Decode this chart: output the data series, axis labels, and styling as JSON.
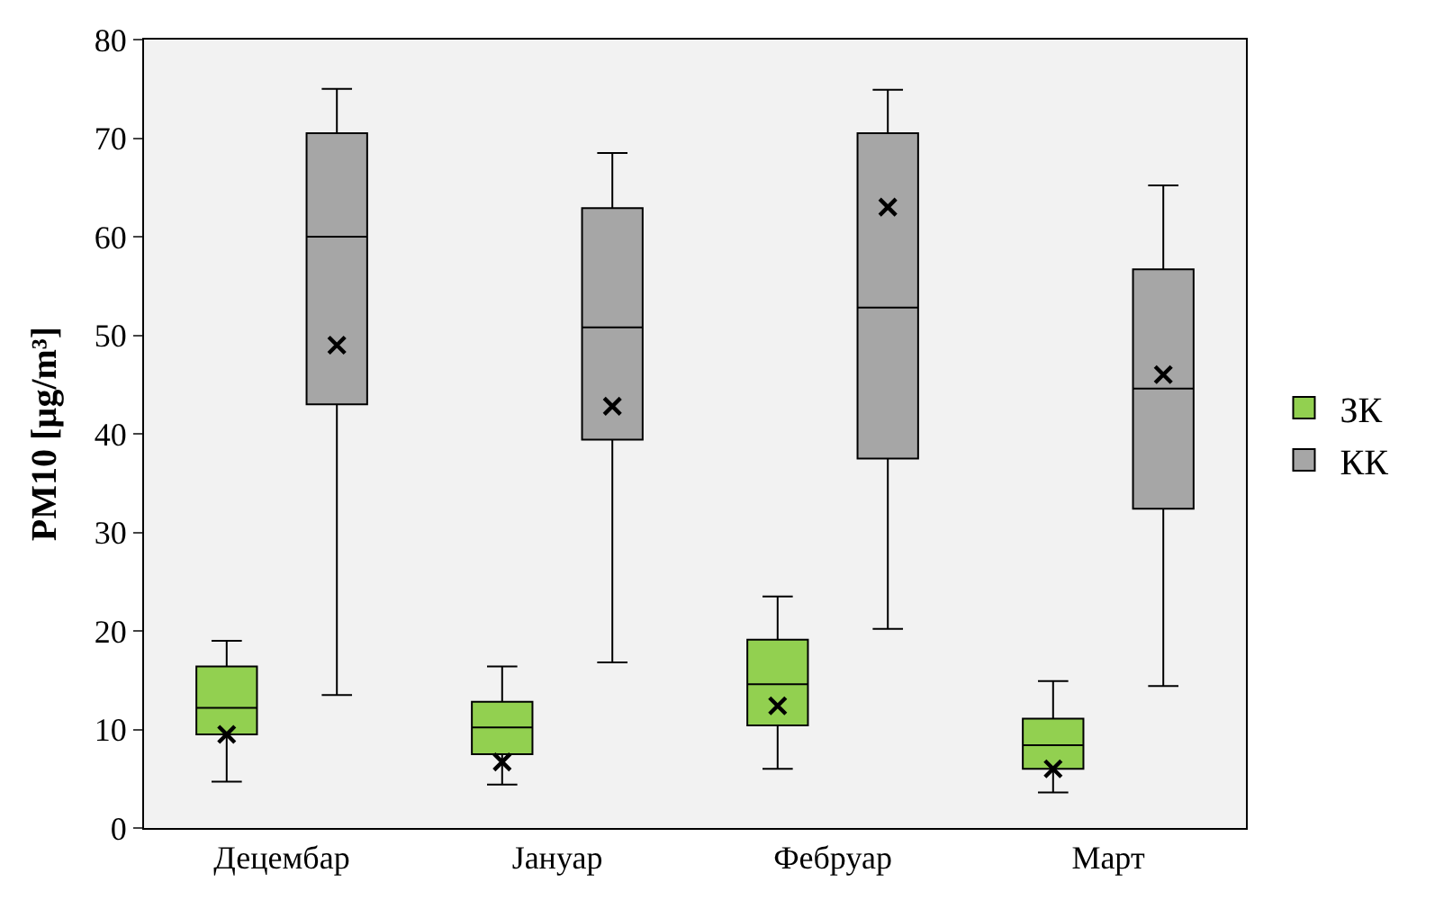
{
  "chart_data": {
    "type": "box",
    "ylabel": "PM10 [µg/m³]",
    "categories": [
      "Децембар",
      "Јануар",
      "Фебруар",
      "Март"
    ],
    "ylim": [
      0,
      80
    ],
    "yticks": [
      0,
      10,
      20,
      30,
      40,
      50,
      60,
      70,
      80
    ],
    "grid": false,
    "legend": "right",
    "series": [
      {
        "name": "ЗК",
        "color": "#92d050",
        "boxes": [
          {
            "low": 4.7,
            "q1": 9.5,
            "median": 12.2,
            "q3": 16.4,
            "high": 19,
            "mean": 9.5
          },
          {
            "low": 4.4,
            "q1": 7.5,
            "median": 10.2,
            "q3": 12.8,
            "high": 16.4,
            "mean": 6.7
          },
          {
            "low": 6,
            "q1": 10.4,
            "median": 14.6,
            "q3": 19.1,
            "high": 23.5,
            "mean": 12.4
          },
          {
            "low": 3.6,
            "q1": 6,
            "median": 8.4,
            "q3": 11.1,
            "high": 14.9,
            "mean": 6
          }
        ]
      },
      {
        "name": "КК",
        "color": "#a6a6a6",
        "boxes": [
          {
            "low": 13.5,
            "q1": 43,
            "median": 60,
            "q3": 70.5,
            "high": 75,
            "mean": 49
          },
          {
            "low": 16.8,
            "q1": 39.4,
            "median": 50.8,
            "q3": 62.9,
            "high": 68.5,
            "mean": 42.8
          },
          {
            "low": 20.2,
            "q1": 37.5,
            "median": 52.8,
            "q3": 70.5,
            "high": 74.9,
            "mean": 63
          },
          {
            "low": 14.4,
            "q1": 32.4,
            "median": 44.6,
            "q3": 56.7,
            "high": 65.2,
            "mean": 46
          }
        ]
      }
    ]
  }
}
